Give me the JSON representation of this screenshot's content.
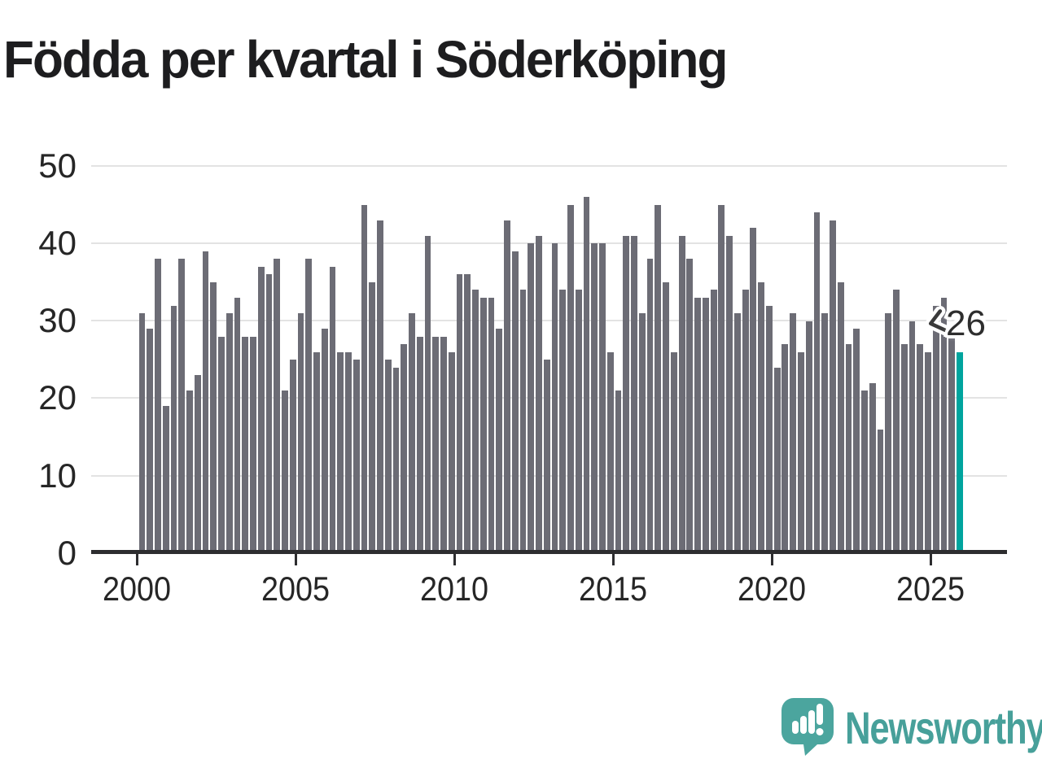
{
  "chart_data": {
    "type": "bar",
    "title": "Födda per kvartal i Söderköping",
    "frequency": "quarterly",
    "x_start": "2000 Q1",
    "x_end": "2025 Q4",
    "values": [
      31,
      29,
      38,
      19,
      32,
      38,
      21,
      23,
      39,
      35,
      28,
      31,
      33,
      28,
      28,
      37,
      36,
      38,
      21,
      25,
      31,
      38,
      26,
      29,
      37,
      26,
      26,
      25,
      45,
      35,
      43,
      25,
      24,
      27,
      31,
      28,
      41,
      28,
      28,
      26,
      36,
      36,
      34,
      33,
      33,
      29,
      43,
      39,
      34,
      40,
      41,
      25,
      40,
      34,
      45,
      34,
      46,
      40,
      40,
      26,
      21,
      41,
      41,
      31,
      38,
      45,
      35,
      26,
      41,
      38,
      33,
      33,
      34,
      45,
      41,
      31,
      34,
      42,
      35,
      32,
      24,
      27,
      31,
      26,
      30,
      44,
      31,
      43,
      35,
      27,
      29,
      21,
      22,
      16,
      31,
      34,
      27,
      30,
      27,
      26,
      32,
      33,
      28,
      26
    ],
    "highlight_index": 103,
    "annotation": {
      "label": "26",
      "points_to": "last bar"
    },
    "x_ticks": [
      "2000",
      "2005",
      "2010",
      "2015",
      "2020",
      "2025"
    ],
    "y_ticks": [
      "0",
      "10",
      "20",
      "30",
      "40",
      "50"
    ],
    "ylim": [
      0,
      50
    ],
    "grid": "horizontal",
    "legend": "none",
    "colors": {
      "bar": "#6C6C75",
      "highlight": "#00A49E",
      "grid": "#E3E3E3",
      "axis": "#2D2D2F",
      "text": "#262626"
    }
  },
  "branding": {
    "logo_text": "Newsworthy",
    "logo_text_color": "#47A09A",
    "logo_icon": "speech-bubble-bar-chart-icon",
    "logo_icon_color": "#4BA59E"
  }
}
